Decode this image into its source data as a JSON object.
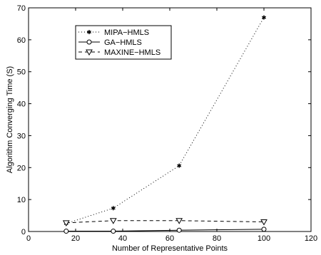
{
  "chart_data": {
    "type": "line",
    "title": "",
    "xlabel": "Number of Representative Points",
    "ylabel": "Algorithm Converging Time (S)",
    "xlim": [
      0,
      120
    ],
    "ylim": [
      0,
      70
    ],
    "xticks": [
      0,
      20,
      40,
      60,
      80,
      100,
      120
    ],
    "yticks": [
      0,
      10,
      20,
      30,
      40,
      50,
      60,
      70
    ],
    "grid": false,
    "legend_position": "top-left",
    "x": [
      16,
      36,
      64,
      100
    ],
    "series": [
      {
        "name": "MIPA−HMLS",
        "values": [
          2.5,
          7.3,
          20.6,
          67.0
        ],
        "line_style": "dotted",
        "marker": "asterisk",
        "color": "#000000"
      },
      {
        "name": "GA−HMLS",
        "values": [
          0.1,
          0.1,
          0.4,
          0.7
        ],
        "line_style": "solid",
        "marker": "circle",
        "color": "#000000"
      },
      {
        "name": "MAXINE−HMLS",
        "values": [
          2.7,
          3.4,
          3.4,
          3.0
        ],
        "line_style": "dashed",
        "marker": "triangle-down",
        "color": "#000000"
      }
    ]
  }
}
